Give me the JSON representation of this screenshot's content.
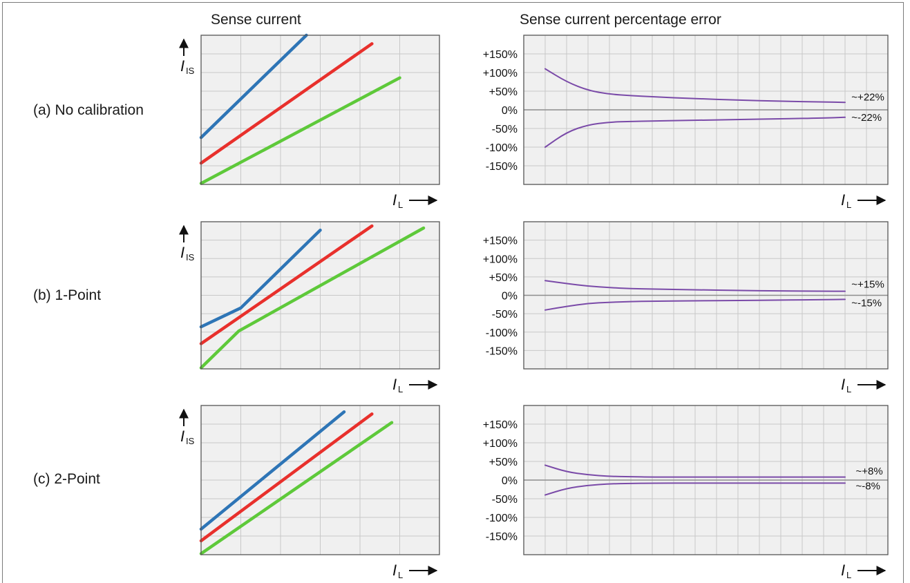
{
  "titles": {
    "left": "Sense current",
    "right": "Sense current percentage error"
  },
  "axes": {
    "y_symbol": "I",
    "y_subscript": "IS",
    "x_symbol": "I",
    "x_subscript": "L"
  },
  "colors": {
    "blue": "#2e75b6",
    "red": "#e8302c",
    "green": "#5ec93a",
    "purple": "#7a4aa8",
    "zero_line": "#8c8c8c",
    "plot_bg": "#f0f0f0",
    "grid": "#c8c8c8",
    "border": "#555555"
  },
  "chart_data": [
    {
      "type": "line",
      "row_label": "(a) No calibration",
      "xlabel": "I_L",
      "ylabel": "I_IS",
      "xlim": [
        0,
        6
      ],
      "ylim": [
        0,
        7
      ],
      "series": [
        {
          "color": "blue",
          "x": [
            0,
            2.65
          ],
          "y": [
            2.2,
            7.0
          ]
        },
        {
          "color": "red",
          "x": [
            0,
            4.3
          ],
          "y": [
            1.0,
            6.6
          ]
        },
        {
          "color": "green",
          "x": [
            0,
            5.0
          ],
          "y": [
            0.05,
            5.0
          ]
        }
      ]
    },
    {
      "type": "line",
      "row_label": "(a) No calibration",
      "xlabel": "I_L",
      "ylabel": "",
      "xlim": [
        0,
        17
      ],
      "ylim": [
        -200,
        200
      ],
      "yticks": [
        "+150%",
        "+100%",
        "+50%",
        "0%",
        "-50%",
        "-100%",
        "-150%"
      ],
      "ytick_values": [
        150,
        100,
        50,
        0,
        -50,
        -100,
        -150
      ],
      "annotations": [
        "~+22%",
        "~-22%"
      ],
      "series": [
        {
          "color": "purple",
          "x": [
            1,
            2,
            3,
            4,
            5,
            6,
            8,
            10,
            12,
            14,
            15
          ],
          "y": [
            110,
            75,
            52,
            42,
            38,
            35,
            30,
            26,
            23,
            21,
            20
          ]
        },
        {
          "color": "purple",
          "x": [
            1,
            2,
            3,
            4,
            5,
            6,
            8,
            10,
            12,
            14,
            15
          ],
          "y": [
            -100,
            -60,
            -40,
            -33,
            -31,
            -30,
            -28,
            -26,
            -24,
            -22,
            -20
          ]
        }
      ]
    },
    {
      "type": "line",
      "row_label": "(b) 1-Point",
      "xlabel": "I_L",
      "ylabel": "I_IS",
      "xlim": [
        0,
        6
      ],
      "ylim": [
        0,
        7
      ],
      "series": [
        {
          "color": "blue",
          "x": [
            0,
            1,
            3.0
          ],
          "y": [
            2.0,
            2.9,
            6.6
          ]
        },
        {
          "color": "red",
          "x": [
            0,
            4.3
          ],
          "y": [
            1.2,
            6.8
          ]
        },
        {
          "color": "green",
          "x": [
            0,
            0.95,
            5.6
          ],
          "y": [
            0.05,
            1.8,
            6.7
          ]
        }
      ]
    },
    {
      "type": "line",
      "row_label": "(b) 1-Point",
      "xlabel": "I_L",
      "ylabel": "",
      "xlim": [
        0,
        17
      ],
      "ylim": [
        -200,
        200
      ],
      "yticks": [
        "+150%",
        "+100%",
        "+50%",
        "0%",
        "-50%",
        "-100%",
        "-150%"
      ],
      "ytick_values": [
        150,
        100,
        50,
        0,
        -50,
        -100,
        -150
      ],
      "annotations": [
        "~+15%",
        "~-15%"
      ],
      "series": [
        {
          "color": "purple",
          "x": [
            1,
            2,
            3,
            4,
            5,
            6,
            8,
            10,
            12,
            14,
            15
          ],
          "y": [
            40,
            32,
            25,
            21,
            18,
            17,
            15,
            13,
            12,
            11,
            11
          ]
        },
        {
          "color": "purple",
          "x": [
            1,
            2,
            3,
            4,
            5,
            6,
            8,
            10,
            12,
            14,
            15
          ],
          "y": [
            -40,
            -30,
            -22,
            -19,
            -17,
            -16,
            -15,
            -14,
            -13,
            -12,
            -11
          ]
        }
      ]
    },
    {
      "type": "line",
      "row_label": "(c) 2-Point",
      "xlabel": "I_L",
      "ylabel": "I_IS",
      "xlim": [
        0,
        6
      ],
      "ylim": [
        0,
        7
      ],
      "series": [
        {
          "color": "blue",
          "x": [
            0,
            3.6
          ],
          "y": [
            1.2,
            6.7
          ]
        },
        {
          "color": "red",
          "x": [
            0,
            4.3
          ],
          "y": [
            0.65,
            6.6
          ]
        },
        {
          "color": "green",
          "x": [
            0,
            4.8
          ],
          "y": [
            0.05,
            6.2
          ]
        }
      ]
    },
    {
      "type": "line",
      "row_label": "(c) 2-Point",
      "xlabel": "I_L",
      "ylabel": "",
      "xlim": [
        0,
        17
      ],
      "ylim": [
        -200,
        200
      ],
      "yticks": [
        "+150%",
        "+100%",
        "+50%",
        "0%",
        "-50%",
        "-100%",
        "-150%"
      ],
      "ytick_values": [
        150,
        100,
        50,
        0,
        -50,
        -100,
        -150
      ],
      "annotations": [
        "~+8%",
        "~-8%"
      ],
      "series": [
        {
          "color": "purple",
          "x": [
            1,
            2,
            3,
            4,
            5,
            6,
            8,
            10,
            12,
            14,
            15
          ],
          "y": [
            40,
            22,
            14,
            10,
            9,
            8,
            8,
            8,
            8,
            8,
            8
          ]
        },
        {
          "color": "purple",
          "x": [
            1,
            2,
            3,
            4,
            5,
            6,
            8,
            10,
            12,
            14,
            15
          ],
          "y": [
            -40,
            -22,
            -14,
            -10,
            -9,
            -8,
            -8,
            -8,
            -8,
            -8,
            -8
          ]
        }
      ]
    }
  ]
}
